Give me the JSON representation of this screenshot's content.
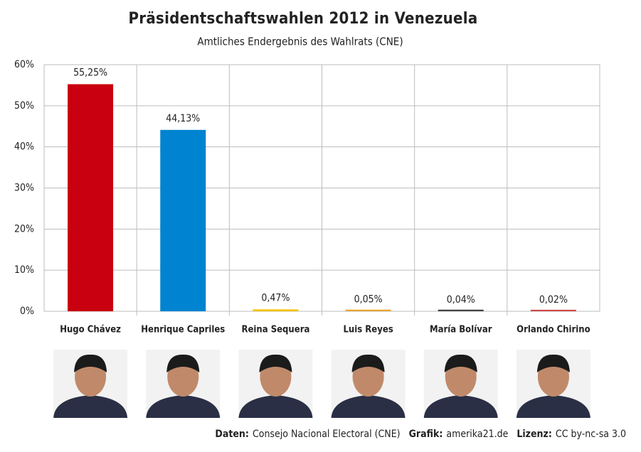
{
  "chart_data": {
    "type": "bar",
    "title": "Präsidentschaftswahlen 2012 in Venezuela",
    "subtitle": "Amtliches Endergebnis des Wahlrats (CNE)",
    "categories": [
      "Hugo Chávez",
      "Henrique Capriles",
      "Reina Sequera",
      "Luis Reyes",
      "María Bolívar",
      "Orlando Chirino"
    ],
    "values": [
      55.25,
      44.13,
      0.47,
      0.05,
      0.04,
      0.02
    ],
    "value_labels": [
      "55,25%",
      "44,13%",
      "0,47%",
      "0,05%",
      "0,04%",
      "0,02%"
    ],
    "colors": [
      "#c8000f",
      "#0083d0",
      "#f5c400",
      "#f0a020",
      "#333333",
      "#d04040"
    ],
    "ylim": [
      0,
      60
    ],
    "yticks": [
      {
        "value": 0,
        "label": "0%"
      },
      {
        "value": 10,
        "label": "10%"
      },
      {
        "value": 20,
        "label": "20%"
      },
      {
        "value": 30,
        "label": "30%"
      },
      {
        "value": 40,
        "label": "40%"
      },
      {
        "value": 50,
        "label": "50%"
      },
      {
        "value": 60,
        "label": "60%"
      }
    ],
    "grid": true,
    "footer": [
      {
        "label": "Daten:",
        "text": "Consejo Nacional Electoral (CNE)"
      },
      {
        "label": "Grafik:",
        "text": "amerika21.de"
      },
      {
        "label": "Lizenz:",
        "text": "CC by-nc-sa 3.0"
      }
    ]
  }
}
